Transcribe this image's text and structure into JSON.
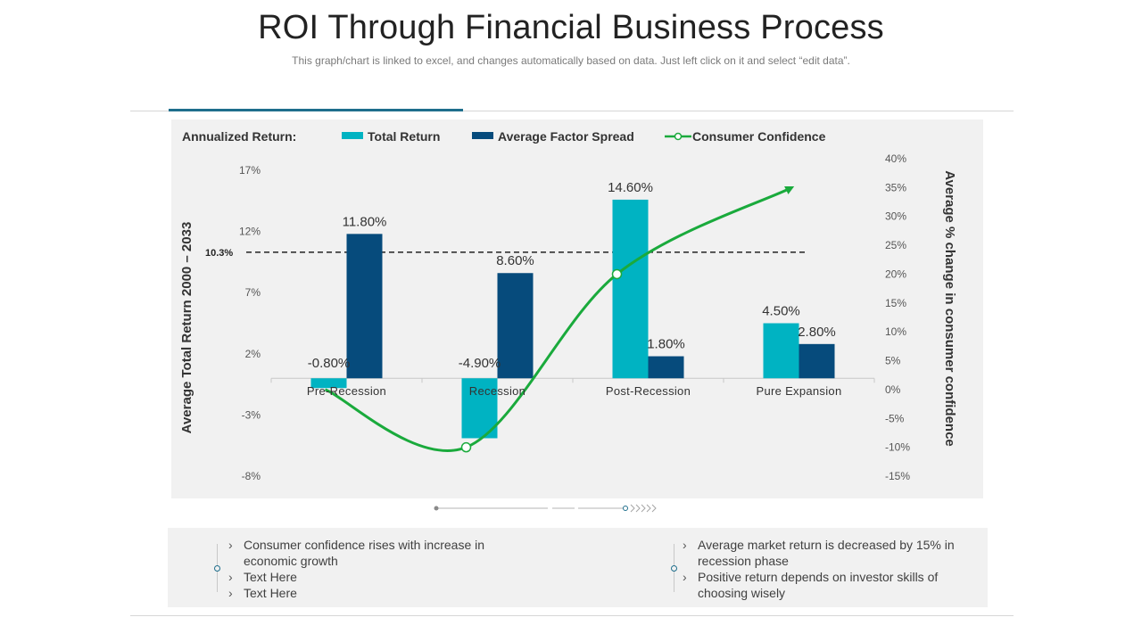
{
  "header": {
    "title": "ROI Through Financial Business Process",
    "subtitle": "This graph/chart is linked to excel, and changes automatically based on data. Just left click on it and select “edit data”."
  },
  "colors": {
    "total_return": "#00b3c2",
    "average_factor_spread": "#064b7c",
    "consumer_confidence": "#1aaa3c",
    "accent": "#1e6e8c"
  },
  "chart_data": {
    "type": "bar",
    "legend_title": "Annualized Return:",
    "legend_position": "top",
    "categories": [
      "Pre-Recession",
      "Recession",
      "Post-Recession",
      "Pure Expansion"
    ],
    "series": [
      {
        "name": "Total Return",
        "axis": "left",
        "values": [
          -0.8,
          -4.9,
          14.6,
          4.5
        ],
        "labels": [
          "-0.80%",
          "-4.90%",
          "14.60%",
          "4.50%"
        ]
      },
      {
        "name": "Average Factor Spread",
        "axis": "left",
        "values": [
          11.8,
          8.6,
          1.8,
          2.8
        ],
        "labels": [
          "11.80%",
          "8.60%",
          "1.80%",
          "2.80%"
        ]
      },
      {
        "name": "Consumer Confidence",
        "axis": "right",
        "type": "line",
        "values": [
          0,
          -10,
          20,
          35
        ]
      }
    ],
    "ylabel": "Average Total Return 2000 – 2033",
    "ylabel_right": "Average % change in consumer confidence",
    "y_ticks": [
      "17%",
      "12%",
      "7%",
      "2%",
      "-3%",
      "-8%"
    ],
    "y_tick_values": [
      17,
      12,
      7,
      2,
      -3,
      -8
    ],
    "ylim": [
      -8,
      17
    ],
    "y2_ticks": [
      "40%",
      "35%",
      "30%",
      "25%",
      "20%",
      "15%",
      "10%",
      "5%",
      "0%",
      "-5%",
      "-10%",
      "-15%"
    ],
    "y2_tick_values": [
      40,
      35,
      30,
      25,
      20,
      15,
      10,
      5,
      0,
      -5,
      -10,
      -15
    ],
    "y2lim": [
      -15,
      40
    ],
    "reference_line": {
      "value": 10.3,
      "label": "10.3%"
    },
    "grid": false
  },
  "notes": {
    "left": [
      "Consumer confidence rises with increase in economic growth",
      "Text Here",
      "Text Here"
    ],
    "right": [
      "Average  market return is decreased by 15% in recession phase",
      "Positive return depends on investor skills of choosing wisely"
    ],
    "bullet": "›"
  }
}
